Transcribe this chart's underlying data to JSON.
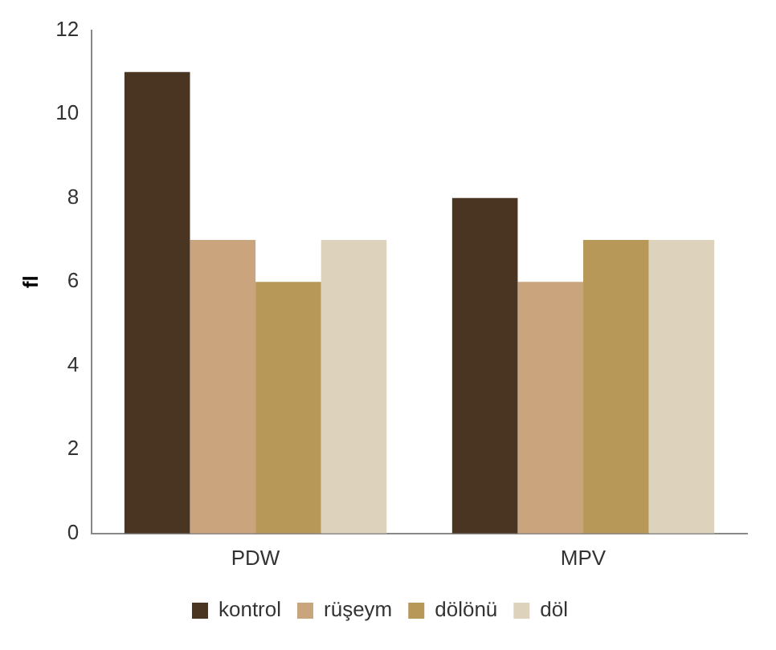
{
  "chart_data": {
    "type": "bar",
    "ylabel": "fl",
    "categories": [
      "PDW",
      "MPV"
    ],
    "series": [
      {
        "name": "kontrol",
        "color": "#4a3522",
        "values": [
          11,
          8
        ]
      },
      {
        "name": "rüşeym",
        "color": "#c9a47c",
        "values": [
          7,
          6
        ]
      },
      {
        "name": "dölönü",
        "color": "#b89858",
        "values": [
          6,
          7
        ]
      },
      {
        "name": "döl",
        "color": "#ddd3bd",
        "values": [
          7,
          7
        ]
      }
    ],
    "ylim": [
      0,
      12
    ],
    "yticks": [
      0,
      2,
      4,
      6,
      8,
      10,
      12
    ],
    "grid": false,
    "legend": "bottom"
  }
}
